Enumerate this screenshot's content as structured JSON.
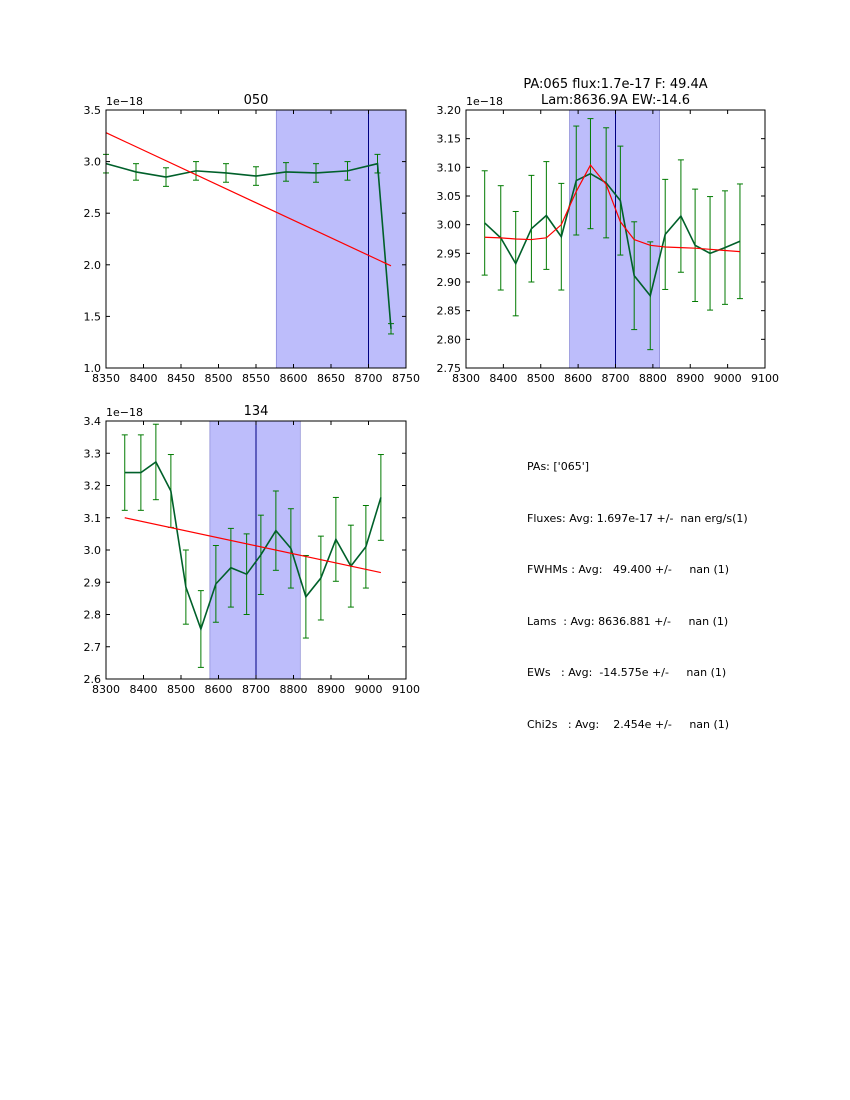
{
  "chart_data": [
    {
      "id": "p050",
      "type": "line",
      "title": [
        "050"
      ],
      "offset_label": "1e−18",
      "xlim": [
        8350,
        8750
      ],
      "ylim": [
        1.0,
        3.5
      ],
      "xticks": [
        8350,
        8400,
        8450,
        8500,
        8550,
        8600,
        8650,
        8700,
        8750
      ],
      "yticks": [
        1.0,
        1.5,
        2.0,
        2.5,
        3.0,
        3.5
      ],
      "ytick_labels": [
        "1.0",
        "1.5",
        "2.0",
        "2.5",
        "3.0",
        "3.5"
      ],
      "span": [
        8577,
        8750
      ],
      "vline": 8700,
      "data": {
        "name": "spectrum",
        "x": [
          8350,
          8390,
          8430,
          8470,
          8510,
          8550,
          8590,
          8630,
          8672,
          8712,
          8730
        ],
        "y": [
          2.98,
          2.9,
          2.85,
          2.91,
          2.89,
          2.86,
          2.9,
          2.89,
          2.91,
          2.98,
          1.38
        ],
        "err": [
          0.09,
          0.08,
          0.09,
          0.09,
          0.09,
          0.09,
          0.09,
          0.09,
          0.09,
          0.09,
          0.05
        ]
      },
      "fit": {
        "name": "fit",
        "x": [
          8350,
          8730
        ],
        "y": [
          3.28,
          1.99
        ]
      },
      "colors": {
        "span": "#bdbdfb",
        "vline": "#000080",
        "data": "#00602a",
        "err": "#007a00",
        "fit": "#ff0000"
      }
    },
    {
      "id": "p065",
      "type": "line",
      "title": [
        "PA:065 flux:1.7e-17 F: 49.4A",
        "Lam:8636.9A EW:-14.6"
      ],
      "offset_label": "1e−18",
      "xlim": [
        8300,
        9100
      ],
      "ylim": [
        2.75,
        3.2
      ],
      "xticks": [
        8300,
        8400,
        8500,
        8600,
        8700,
        8800,
        8900,
        9000,
        9100
      ],
      "yticks": [
        2.75,
        2.8,
        2.85,
        2.9,
        2.95,
        3.0,
        3.05,
        3.1,
        3.15,
        3.2
      ],
      "ytick_labels": [
        "2.75",
        "2.80",
        "2.85",
        "2.90",
        "2.95",
        "3.00",
        "3.05",
        "3.10",
        "3.15",
        "3.20"
      ],
      "span": [
        8577,
        8818
      ],
      "vline": 8700,
      "data": {
        "name": "spectrum",
        "x": [
          8350,
          8393,
          8433,
          8475,
          8515,
          8555,
          8595,
          8633,
          8675,
          8713,
          8750,
          8793,
          8833,
          8875,
          8913,
          8953,
          8993,
          9033
        ],
        "y": [
          3.003,
          2.977,
          2.932,
          2.993,
          3.016,
          2.979,
          3.077,
          3.089,
          3.073,
          3.042,
          2.911,
          2.876,
          2.983,
          3.015,
          2.964,
          2.95,
          2.96,
          2.971
        ],
        "err": [
          0.091,
          0.091,
          0.091,
          0.093,
          0.094,
          0.093,
          0.095,
          0.096,
          0.096,
          0.095,
          0.094,
          0.094,
          0.096,
          0.098,
          0.098,
          0.099,
          0.099,
          0.1
        ]
      },
      "fit": {
        "name": "gaussian-fit",
        "x": [
          8350,
          8393,
          8433,
          8475,
          8515,
          8555,
          8595,
          8633,
          8675,
          8713,
          8750,
          8793,
          8833,
          8875,
          8913,
          8953,
          8993,
          9033
        ],
        "y": [
          2.978,
          2.977,
          2.975,
          2.974,
          2.977,
          3.0,
          3.058,
          3.104,
          3.07,
          3.005,
          2.974,
          2.964,
          2.961,
          2.96,
          2.959,
          2.957,
          2.955,
          2.953
        ]
      },
      "colors": {
        "span": "#bdbdfb",
        "vline": "#000080",
        "data": "#00602a",
        "err": "#007a00",
        "fit": "#ff0000"
      }
    },
    {
      "id": "p134",
      "type": "line",
      "title": [
        "134"
      ],
      "offset_label": "1e−18",
      "xlim": [
        8300,
        9100
      ],
      "ylim": [
        2.6,
        3.4
      ],
      "xticks": [
        8300,
        8400,
        8500,
        8600,
        8700,
        8800,
        8900,
        9000,
        9100
      ],
      "yticks": [
        2.6,
        2.7,
        2.8,
        2.9,
        3.0,
        3.1,
        3.2,
        3.3,
        3.4
      ],
      "ytick_labels": [
        "2.6",
        "2.7",
        "2.8",
        "2.9",
        "3.0",
        "3.1",
        "3.2",
        "3.3",
        "3.4"
      ],
      "span": [
        8577,
        8818
      ],
      "vline": 8700,
      "data": {
        "name": "spectrum",
        "x": [
          8350,
          8393,
          8433,
          8473,
          8513,
          8553,
          8593,
          8633,
          8675,
          8713,
          8753,
          8793,
          8833,
          8873,
          8913,
          8953,
          8993,
          9033
        ],
        "y": [
          3.24,
          3.24,
          3.273,
          3.183,
          2.885,
          2.755,
          2.895,
          2.945,
          2.925,
          2.985,
          3.06,
          3.005,
          2.855,
          2.913,
          3.033,
          2.95,
          3.01,
          3.163
        ],
        "err": [
          0.117,
          0.117,
          0.117,
          0.113,
          0.115,
          0.119,
          0.119,
          0.122,
          0.125,
          0.123,
          0.123,
          0.123,
          0.128,
          0.13,
          0.13,
          0.127,
          0.128,
          0.133
        ]
      },
      "fit": {
        "name": "fit",
        "x": [
          8350,
          9033
        ],
        "y": [
          3.1,
          2.93
        ]
      },
      "colors": {
        "span": "#bdbdfb",
        "vline": "#000080",
        "data": "#00602a",
        "err": "#007a00",
        "fit": "#ff0000"
      }
    }
  ],
  "stats": [
    "PAs: ['065']",
    "Fluxes: Avg: 1.697e-17 +/-  nan erg/s(1)",
    "FWHMs : Avg:   49.400 +/-     nan (1)",
    "Lams  : Avg: 8636.881 +/-     nan (1)",
    "EWs   : Avg:  -14.575e +/-     nan (1)",
    "Chi2s   : Avg:    2.454e +/-     nan (1)"
  ]
}
